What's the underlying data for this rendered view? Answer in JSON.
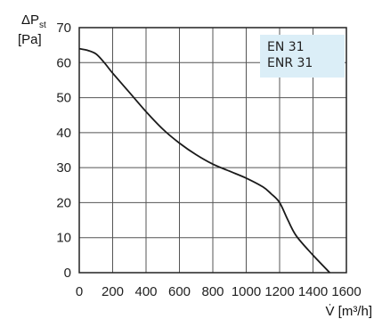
{
  "chart_data": {
    "type": "line",
    "ylabel_main": "ΔP",
    "ylabel_sub": "st",
    "ylabel_unit": "[Pa]",
    "xlabel_symbol": "V̇",
    "xlabel_unit": " [m³/h]",
    "xlim": [
      0,
      1600
    ],
    "ylim": [
      0,
      70
    ],
    "x_ticks": [
      0,
      200,
      400,
      600,
      800,
      1000,
      1200,
      1400,
      1600
    ],
    "y_ticks": [
      0,
      10,
      20,
      30,
      40,
      50,
      60,
      70
    ],
    "grid": true,
    "legend": {
      "placement": "top-right",
      "entries": [
        "EN 31",
        "ENR 31"
      ],
      "background": "#dbeef7"
    },
    "series": [
      {
        "color": "#1a1a1a",
        "x": [
          0,
          50,
          100,
          150,
          200,
          300,
          400,
          500,
          600,
          700,
          800,
          900,
          1000,
          1100,
          1150,
          1200,
          1250,
          1300,
          1400,
          1500
        ],
        "y": [
          64,
          63.5,
          62.5,
          60,
          57,
          51.5,
          46,
          41,
          37,
          33.7,
          31,
          29,
          27,
          24.5,
          22.5,
          20,
          15,
          10.5,
          5,
          0
        ]
      }
    ]
  }
}
